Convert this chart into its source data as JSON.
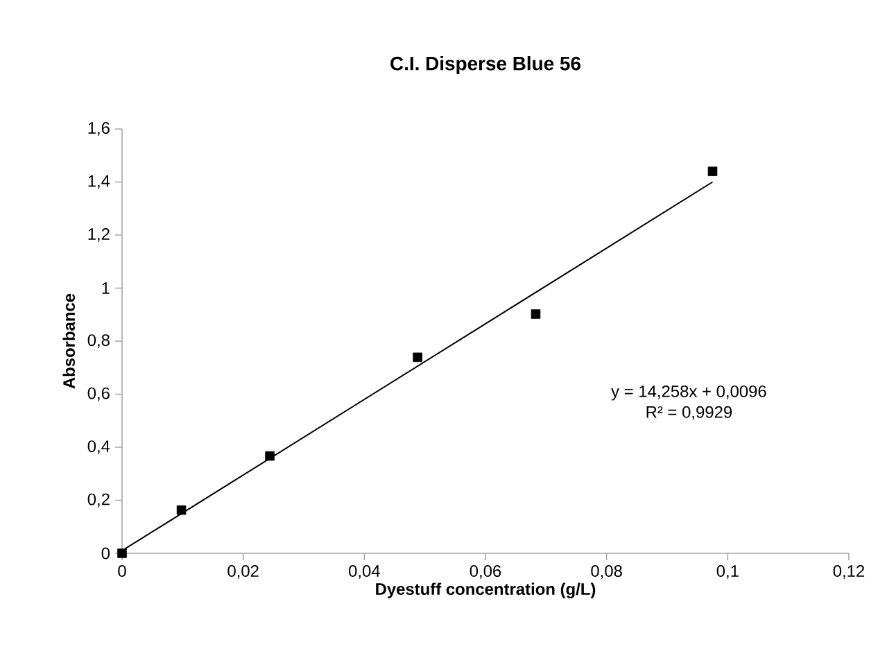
{
  "chart_data": {
    "type": "scatter",
    "title": "C.I. Disperse Blue 56",
    "xlabel": "Dyestuff concentration (g/L)",
    "ylabel": "Absorbance",
    "series": [
      {
        "color": "#000000",
        "marker": "square",
        "x": [
          0,
          0.0098,
          0.0244,
          0.0488,
          0.0683,
          0.0975
        ],
        "values": [
          0,
          0.163,
          0.367,
          0.739,
          0.902,
          1.44
        ]
      },
      {
        "type": "line",
        "color": "#000000",
        "marker": "none",
        "line_style": "solid",
        "x": [
          0,
          0.0975
        ],
        "values": [
          0.01,
          1.4
        ]
      }
    ],
    "xlim": [
      0,
      0.12
    ],
    "ylim": [
      0,
      1.6
    ],
    "xticks": [
      0,
      {
        "value": 0.02,
        "label": "0,02"
      },
      {
        "value": 0.04,
        "label": "0,04"
      },
      {
        "value": 0.06,
        "label": "0,06"
      },
      {
        "value": 0.08,
        "label": "0,08"
      },
      {
        "value": 0.1,
        "label": "0,1"
      },
      {
        "value": 0.12,
        "label": "0,12"
      }
    ],
    "yticks": [
      0,
      {
        "value": 0.2,
        "label": "0,2"
      },
      {
        "value": 0.4,
        "label": "0,4"
      },
      {
        "value": 0.6,
        "label": "0,6"
      },
      {
        "value": 0.8,
        "label": "0,8"
      },
      1,
      {
        "value": 1.2,
        "label": "1,2"
      },
      {
        "value": 1.4,
        "label": "1,4"
      },
      {
        "value": 1.6,
        "label": "1,6"
      }
    ],
    "grid": false,
    "annotations": [
      "y = 14,258x + 0,0096",
      "R² = 0,9929"
    ]
  }
}
